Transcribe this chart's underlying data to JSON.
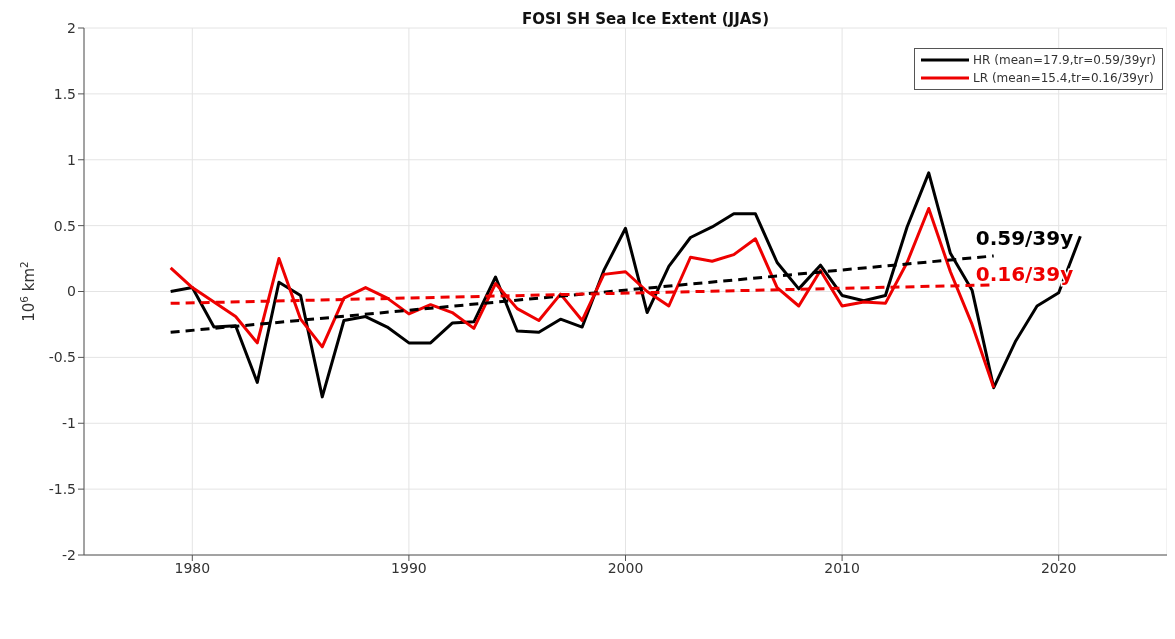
{
  "chart_data": {
    "type": "line",
    "title": "FOSI SH Sea Ice Extent (JJAS)",
    "ylabel": "10$^{6}$ km$^{2}$",
    "x": [
      1979,
      1980,
      1981,
      1982,
      1983,
      1984,
      1985,
      1986,
      1987,
      1988,
      1989,
      1990,
      1991,
      1992,
      1993,
      1994,
      1995,
      1996,
      1997,
      1998,
      1999,
      2000,
      2001,
      2002,
      2003,
      2004,
      2005,
      2006,
      2007,
      2008,
      2009,
      2010,
      2011,
      2012,
      2013,
      2014,
      2015,
      2016,
      2017,
      2018,
      2019,
      2020,
      2021
    ],
    "series": [
      {
        "name": "HR (mean=17.9,tr=0.59/39yr)",
        "color": "#000000",
        "values": [
          0.0,
          0.03,
          -0.27,
          -0.26,
          -0.69,
          0.07,
          -0.03,
          -0.8,
          -0.22,
          -0.19,
          -0.27,
          -0.39,
          -0.39,
          -0.24,
          -0.23,
          0.11,
          -0.3,
          -0.31,
          -0.21,
          -0.27,
          0.16,
          0.48,
          -0.16,
          0.19,
          0.41,
          0.49,
          0.59,
          0.59,
          0.22,
          0.02,
          0.2,
          -0.03,
          -0.07,
          -0.03,
          0.49,
          0.9,
          0.29,
          0.01,
          -0.73,
          -0.38,
          -0.11,
          -0.01,
          0.42
        ]
      },
      {
        "name": "LR (mean=15.4,tr=0.16/39yr)",
        "color": "#ee0000",
        "x": [
          1979,
          1980,
          1981,
          1982,
          1983,
          1984,
          1985,
          1986,
          1987,
          1988,
          1989,
          1990,
          1991,
          1992,
          1993,
          1994,
          1995,
          1996,
          1997,
          1998,
          1999,
          2000,
          2001,
          2002,
          2003,
          2004,
          2005,
          2006,
          2007,
          2008,
          2009,
          2010,
          2011,
          2012,
          2013,
          2014,
          2015,
          2016,
          2017
        ],
        "values": [
          0.18,
          0.03,
          -0.08,
          -0.19,
          -0.39,
          0.25,
          -0.21,
          -0.42,
          -0.05,
          0.03,
          -0.05,
          -0.17,
          -0.1,
          -0.16,
          -0.28,
          0.06,
          -0.13,
          -0.22,
          -0.02,
          -0.22,
          0.13,
          0.15,
          0.0,
          -0.11,
          0.26,
          0.23,
          0.28,
          0.4,
          0.03,
          -0.11,
          0.16,
          -0.11,
          -0.08,
          -0.09,
          0.22,
          0.63,
          0.15,
          -0.25,
          -0.73
        ]
      },
      {
        "type": "line",
        "color": "#000000",
        "line_style": "dashed",
        "x": [
          1979,
          2017
        ],
        "values": [
          -0.31,
          0.27
        ]
      },
      {
        "type": "line",
        "color": "#ee0000",
        "line_style": "dashed",
        "x": [
          1979,
          2017
        ],
        "values": [
          -0.09,
          0.05
        ]
      }
    ],
    "annotations": [
      "0.59/39y",
      "0.16/39y"
    ],
    "xlim": [
      1975,
      2025
    ],
    "xticks": [
      1980,
      1990,
      2000,
      2010,
      2020
    ],
    "ylim": [
      -2,
      2
    ],
    "yticks": [
      -2,
      -1.5,
      -1,
      -0.5,
      0,
      0.5,
      1,
      1.5,
      2
    ],
    "grid": true,
    "legend": "top right",
    "marker": "none",
    "line_style": "solid"
  }
}
